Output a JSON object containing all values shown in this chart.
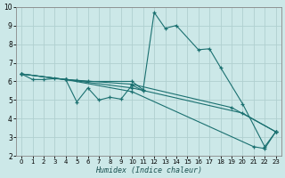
{
  "title": "",
  "xlabel": "Humidex (Indice chaleur)",
  "xlim": [
    -0.5,
    23.5
  ],
  "ylim": [
    2,
    10
  ],
  "yticks": [
    2,
    3,
    4,
    5,
    6,
    7,
    8,
    9,
    10
  ],
  "xticks": [
    0,
    1,
    2,
    3,
    4,
    5,
    6,
    7,
    8,
    9,
    10,
    11,
    12,
    13,
    14,
    15,
    16,
    17,
    18,
    19,
    20,
    21,
    22,
    23
  ],
  "bg_color": "#cce8e8",
  "line_color": "#1a7070",
  "grid_color": "#b0d0d0",
  "lines": [
    {
      "x": [
        0,
        1,
        2,
        3,
        4,
        5,
        6,
        10,
        11,
        12,
        13,
        14,
        16,
        17,
        18,
        20,
        22,
        23
      ],
      "y": [
        6.4,
        6.1,
        6.1,
        6.15,
        6.1,
        6.05,
        6.0,
        6.0,
        5.55,
        9.7,
        8.85,
        9.0,
        7.7,
        7.75,
        6.75,
        4.8,
        2.5,
        3.3
      ]
    },
    {
      "x": [
        4,
        5,
        6,
        7,
        8,
        9,
        10,
        11
      ],
      "y": [
        6.1,
        4.9,
        5.65,
        5.0,
        5.15,
        5.05,
        5.8,
        5.5
      ]
    },
    {
      "x": [
        0,
        4,
        10,
        19,
        23
      ],
      "y": [
        6.4,
        6.1,
        5.85,
        4.6,
        3.3
      ]
    },
    {
      "x": [
        0,
        4,
        10,
        20,
        23
      ],
      "y": [
        6.4,
        6.1,
        5.65,
        4.3,
        3.3
      ]
    },
    {
      "x": [
        0,
        4,
        10,
        21,
        22,
        23
      ],
      "y": [
        6.4,
        6.1,
        5.45,
        2.5,
        2.4,
        3.3
      ]
    }
  ]
}
